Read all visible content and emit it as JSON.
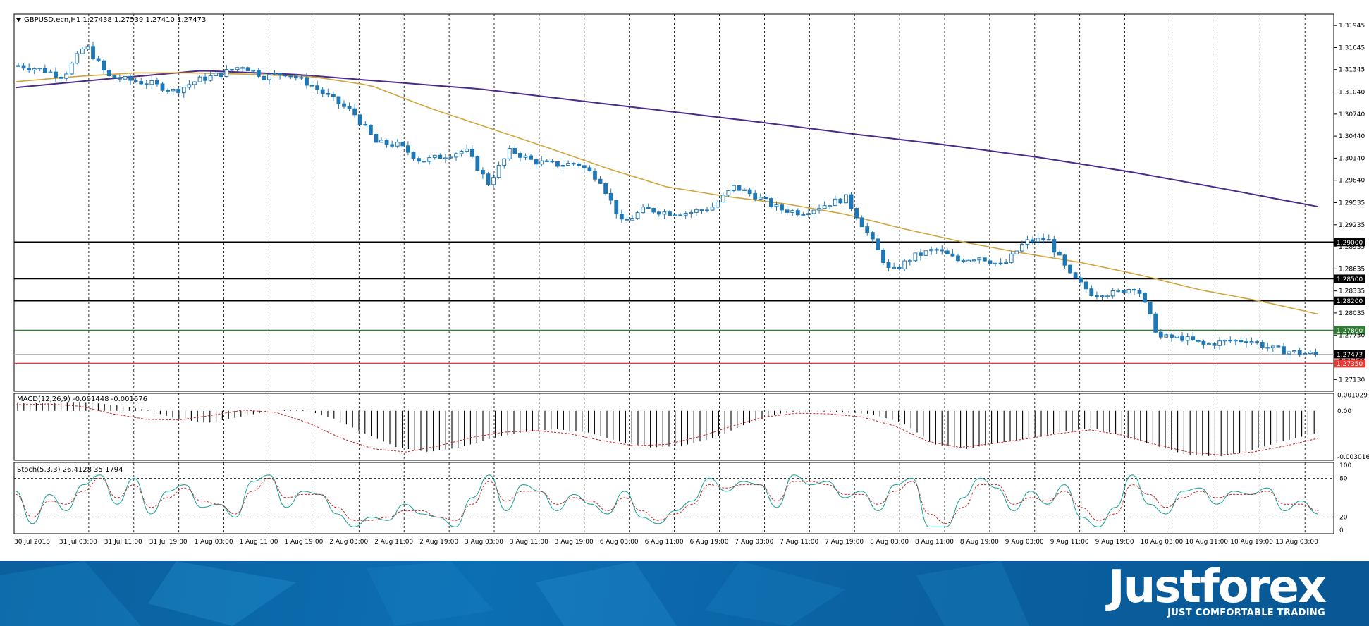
{
  "symbol_header": "GBPUSD.ecn,H1  1.27438 1.27539 1.27410 1.27473",
  "macd_header": "MACD(12,26,9) -0.001448 -0.001676",
  "stoch_header": "Stoch(5,3,3) 26.4128 35.1794",
  "brand": {
    "logo": "Justforex",
    "tagline": "JUST COMFORTABLE TRADING"
  },
  "colors": {
    "candle": "#1f77b4",
    "ma_fast": "#d2a53c",
    "ma_slow": "#4b2a8a",
    "level_black": "#000000",
    "level_green": "#2e7d32",
    "level_red": "#e53935",
    "macd_signal": "#c62828",
    "stoch_main": "#26a69a",
    "stoch_signal": "#c62828"
  },
  "chart_data": [
    {
      "type": "candlestick",
      "title": "GBPUSD.ecn,H1",
      "ylim": [
        1.2697,
        1.321
      ],
      "y_ticks": [
        "1.31945",
        "1.31645",
        "1.31345",
        "1.31040",
        "1.30740",
        "1.30440",
        "1.30140",
        "1.29840",
        "1.29535",
        "1.29235",
        "1.28935",
        "1.28635",
        "1.28335",
        "1.28035",
        "1.27730",
        "1.27430",
        "1.27130"
      ],
      "x_labels": [
        "30 Jul 2018",
        "31 Jul 03:00",
        "31 Jul 11:00",
        "31 Jul 19:00",
        "1 Aug 03:00",
        "1 Aug 11:00",
        "1 Aug 19:00",
        "2 Aug 03:00",
        "2 Aug 11:00",
        "2 Aug 19:00",
        "3 Aug 03:00",
        "3 Aug 11:00",
        "3 Aug 19:00",
        "6 Aug 03:00",
        "6 Aug 11:00",
        "6 Aug 19:00",
        "7 Aug 03:00",
        "7 Aug 11:00",
        "7 Aug 19:00",
        "8 Aug 03:00",
        "8 Aug 11:00",
        "8 Aug 19:00",
        "9 Aug 03:00",
        "9 Aug 11:00",
        "9 Aug 19:00",
        "10 Aug 03:00",
        "10 Aug 11:00",
        "10 Aug 19:00",
        "13 Aug 03:00"
      ],
      "price_anchors": [
        1.314,
        1.3135,
        1.3125,
        1.3168,
        1.3125,
        1.312,
        1.3115,
        1.3105,
        1.312,
        1.3128,
        1.314,
        1.3125,
        1.313,
        1.3115,
        1.3095,
        1.3075,
        1.3035,
        1.3032,
        1.301,
        1.3017,
        1.3025,
        1.298,
        1.3025,
        1.301,
        1.3005,
        1.3007,
        1.2985,
        1.2925,
        1.2945,
        1.294,
        1.294,
        1.2947,
        1.2975,
        1.2962,
        1.2945,
        1.294,
        1.295,
        1.296,
        1.291,
        1.2858,
        1.288,
        1.289,
        1.2875,
        1.288,
        1.2867,
        1.29,
        1.2905,
        1.2855,
        1.283,
        1.283,
        1.284,
        1.277,
        1.277,
        1.276,
        1.2765,
        1.2767,
        1.2755,
        1.275,
        1.2747
      ],
      "ma_fast_anchors": [
        1.3118,
        1.3125,
        1.313,
        1.313,
        1.3128,
        1.3125,
        1.3113,
        1.3082,
        1.3055,
        1.3028,
        1.3,
        1.2975,
        1.2962,
        1.2952,
        1.2938,
        1.2918,
        1.29,
        1.2885,
        1.2872,
        1.2855,
        1.2835,
        1.282,
        1.2802
      ],
      "ma_slow_anchors": [
        1.311,
        1.3122,
        1.3133,
        1.3128,
        1.3118,
        1.3108,
        1.3093,
        1.3078,
        1.3063,
        1.3047,
        1.3032,
        1.3015,
        1.2995,
        1.2972,
        1.2948
      ],
      "levels": [
        {
          "value": 1.29,
          "label": "1.29000",
          "kind": "black"
        },
        {
          "value": 1.285,
          "label": "1.28500",
          "kind": "black"
        },
        {
          "value": 1.282,
          "label": "1.28200",
          "kind": "black"
        },
        {
          "value": 1.278,
          "label": "1.27800",
          "kind": "green"
        },
        {
          "value": 1.2735,
          "label": "1.27350",
          "kind": "red"
        }
      ],
      "current_price": {
        "value": 1.27473,
        "label": "1.27473"
      }
    },
    {
      "type": "bar",
      "title": "MACD(12,26,9)",
      "ylim": [
        -0.00325,
        0.00115
      ],
      "y_ticks": [
        "0.001029",
        "0.00",
        "-0.003016"
      ],
      "hist_anchors": [
        0.0005,
        0.00055,
        0.0006,
        0.0004,
        0.0001,
        -0.0005,
        -0.0008,
        -0.0004,
        0.0,
        0.0001,
        -0.0005,
        -0.0015,
        -0.0024,
        -0.0027,
        -0.0024,
        -0.0018,
        -0.0014,
        -0.0012,
        -0.0014,
        -0.002,
        -0.0024,
        -0.0023,
        -0.0018,
        -0.0009,
        -0.0002,
        0.0,
        -0.0001,
        -0.0002,
        -0.0008,
        -0.0022,
        -0.0025,
        -0.0021,
        -0.0018,
        -0.0014,
        -0.0011,
        -0.0017,
        -0.0023,
        -0.0029,
        -0.003,
        -0.0026,
        -0.002,
        -0.0015
      ],
      "signal_anchors": [
        0.0004,
        0.00045,
        0.0003,
        -0.0002,
        -0.00055,
        -0.0006,
        -0.0003,
        5e-05,
        -0.0001,
        -0.0008,
        -0.0018,
        -0.0025,
        -0.0027,
        -0.0023,
        -0.00175,
        -0.0014,
        -0.0013,
        -0.0015,
        -0.00195,
        -0.0023,
        -0.0022,
        -0.0017,
        -0.001,
        -0.0004,
        -0.00015,
        -0.0002,
        -0.0004,
        -0.001,
        -0.002,
        -0.0024,
        -0.00215,
        -0.00185,
        -0.0015,
        -0.00125,
        -0.0016,
        -0.0022,
        -0.0027,
        -0.0029,
        -0.0027,
        -0.0023,
        -0.0018
      ]
    },
    {
      "type": "line",
      "title": "Stoch(5,3,3)",
      "ylim": [
        0,
        100
      ],
      "y_ticks": [
        "100",
        "80",
        "20",
        "0"
      ],
      "main_anchors": [
        60,
        10,
        55,
        30,
        70,
        85,
        40,
        80,
        25,
        60,
        70,
        35,
        40,
        20,
        75,
        85,
        35,
        60,
        55,
        25,
        5,
        20,
        15,
        40,
        25,
        20,
        5,
        50,
        85,
        30,
        70,
        60,
        30,
        55,
        40,
        25,
        60,
        20,
        10,
        30,
        45,
        80,
        60,
        75,
        70,
        35,
        85,
        70,
        75,
        50,
        60,
        30,
        70,
        80,
        5,
        5,
        50,
        80,
        65,
        30,
        60,
        40,
        70,
        20,
        5,
        35,
        85,
        40,
        25,
        60,
        65,
        40,
        60,
        55,
        65,
        30,
        45,
        25
      ],
      "signal_anchors": [
        55,
        20,
        45,
        40,
        60,
        80,
        50,
        70,
        35,
        50,
        65,
        45,
        40,
        25,
        60,
        80,
        50,
        55,
        55,
        35,
        15,
        15,
        20,
        30,
        30,
        20,
        15,
        40,
        75,
        45,
        60,
        60,
        40,
        50,
        45,
        30,
        50,
        30,
        15,
        25,
        40,
        70,
        65,
        70,
        70,
        45,
        75,
        75,
        70,
        55,
        55,
        40,
        60,
        75,
        25,
        10,
        35,
        70,
        70,
        40,
        50,
        45,
        60,
        35,
        15,
        25,
        70,
        55,
        35,
        50,
        60,
        50,
        55,
        55,
        60,
        40,
        40,
        30
      ],
      "levels": [
        80,
        20
      ]
    }
  ]
}
